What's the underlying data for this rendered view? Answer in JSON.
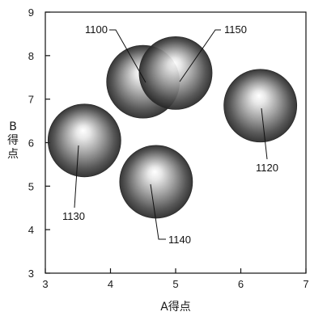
{
  "chart_data": {
    "type": "scatter",
    "xlabel": "A得点",
    "ylabel": "B得点",
    "xlim": [
      3,
      7
    ],
    "ylim": [
      3,
      9
    ],
    "xticks": [
      "3",
      "4",
      "5",
      "6",
      "7"
    ],
    "yticks": [
      "3",
      "4",
      "5",
      "6",
      "7",
      "8",
      "9"
    ],
    "grid": false,
    "points": [
      {
        "label": "1100",
        "x": 4.5,
        "y": 7.4
      },
      {
        "label": "1150",
        "x": 5.0,
        "y": 7.6
      },
      {
        "label": "1120",
        "x": 6.3,
        "y": 6.85
      },
      {
        "label": "1130",
        "x": 3.6,
        "y": 6.05
      },
      {
        "label": "1140",
        "x": 4.7,
        "y": 5.1
      }
    ]
  }
}
